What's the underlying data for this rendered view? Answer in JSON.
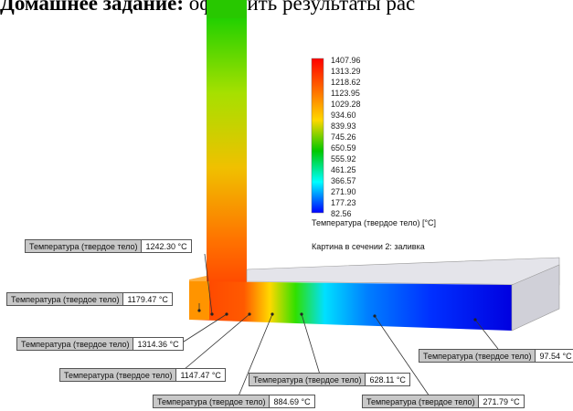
{
  "heading": {
    "bold": "Домашнее задание:",
    "rest": " оформить результаты рас"
  },
  "colorbar": {
    "ticks": [
      "1407.96",
      "1313.29",
      "1218.62",
      "1123.95",
      "1029.28",
      "934.60",
      "839.93",
      "745.26",
      "650.59",
      "555.92",
      "461.25",
      "366.57",
      "271.90",
      "177.23",
      "82.56"
    ],
    "colors": [
      "#ff0000",
      "#ff6a00",
      "#ffd800",
      "#00c800",
      "#00ffff",
      "#0000ff"
    ]
  },
  "legend_title": "Температура (твердое тело) [°C]",
  "section_note": "Картина в сечении 2: заливка",
  "probes": [
    {
      "label": "Температура (твердое тело)",
      "value": "1242.30 °C"
    },
    {
      "label": "Температура (твердое тело)",
      "value": "1179.47 °C"
    },
    {
      "label": "Температура (твердое тело)",
      "value": "1314.36 °C"
    },
    {
      "label": "Температура (твердое тело)",
      "value": "1147.47 °C"
    },
    {
      "label": "Температура (твердое тело)",
      "value": "884.69 °C"
    },
    {
      "label": "Температура (твердое тело)",
      "value": "628.11 °C"
    },
    {
      "label": "Температура (твердое тело)",
      "value": "271.79 °C"
    },
    {
      "label": "Температура (твердое тело)",
      "value": "97.54 °C"
    }
  ]
}
